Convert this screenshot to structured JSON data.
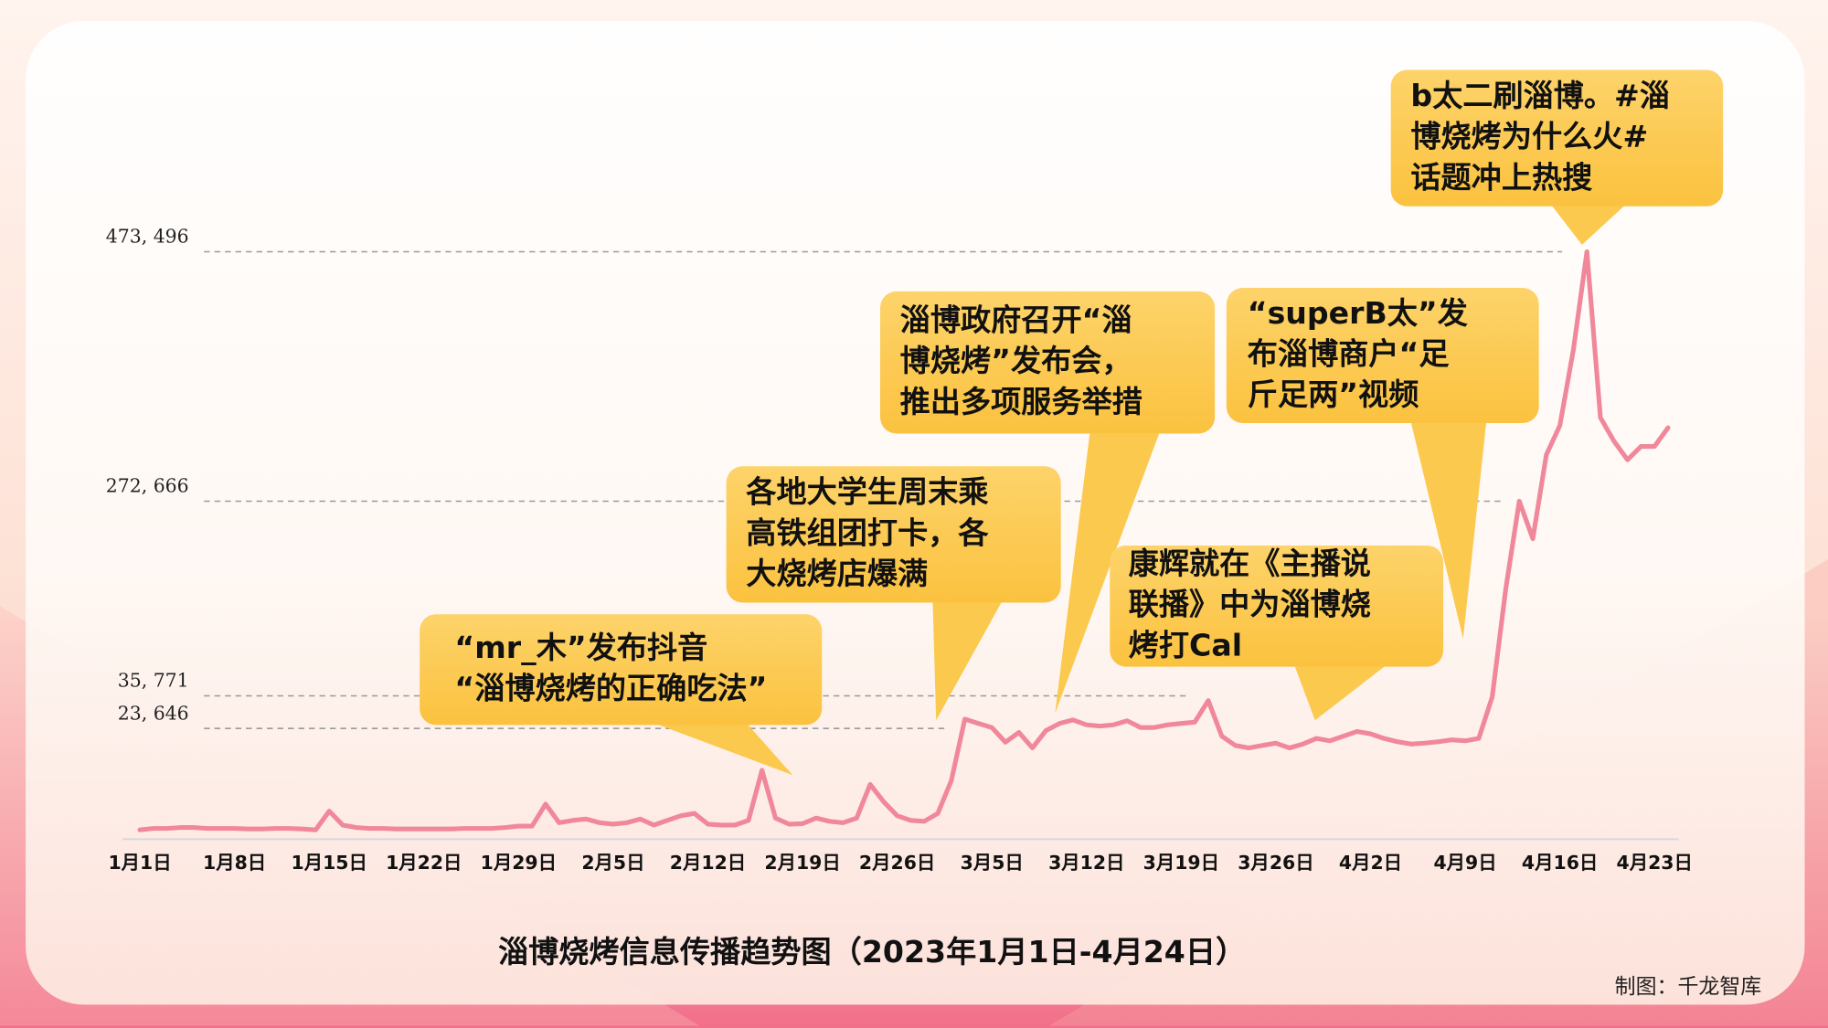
{
  "chart_data": {
    "type": "line",
    "title": "淄博烧烤信息传播趋势图（2023年1月1日-4月24日）",
    "credit": "制图：千龙智库",
    "categories": [
      "1月1日",
      null,
      null,
      null,
      null,
      null,
      null,
      "1月8日",
      null,
      null,
      null,
      null,
      null,
      null,
      "1月15日",
      null,
      null,
      null,
      null,
      null,
      null,
      "1月22日",
      null,
      null,
      null,
      null,
      null,
      null,
      "1月29日",
      null,
      null,
      null,
      null,
      null,
      null,
      "2月5日",
      null,
      null,
      null,
      null,
      null,
      null,
      "2月12日",
      null,
      null,
      null,
      null,
      null,
      null,
      "2月19日",
      null,
      null,
      null,
      null,
      null,
      null,
      "2月26日",
      null,
      null,
      null,
      null,
      null,
      null,
      "3月5日",
      null,
      null,
      null,
      null,
      null,
      null,
      "3月12日",
      null,
      null,
      null,
      null,
      null,
      null,
      "3月19日",
      null,
      null,
      null,
      null,
      null,
      null,
      "3月26日",
      null,
      null,
      null,
      null,
      null,
      null,
      "4月2日",
      null,
      null,
      null,
      null,
      null,
      null,
      "4月9日",
      null,
      null,
      null,
      null,
      null,
      null,
      "4月16日",
      null,
      null,
      null,
      null,
      null,
      null,
      "4月23日",
      null
    ],
    "values": [
      2000,
      2300,
      2300,
      2500,
      2500,
      2300,
      2300,
      2300,
      2200,
      2200,
      2300,
      2300,
      2200,
      2000,
      6000,
      3000,
      2500,
      2300,
      2300,
      2200,
      2200,
      2200,
      2200,
      2200,
      2300,
      2300,
      2300,
      2500,
      2800,
      2800,
      7500,
      3500,
      4000,
      4300,
      3500,
      3200,
      3500,
      4300,
      3000,
      4000,
      5000,
      5500,
      3200,
      3000,
      3000,
      4000,
      14700,
      4500,
      3200,
      3300,
      4500,
      3800,
      3500,
      4500,
      11700,
      8000,
      5000,
      4000,
      3800,
      5500,
      12500,
      27100,
      25500,
      24000,
      20700,
      22800,
      19500,
      23200,
      25500,
      26800,
      25000,
      24500,
      25000,
      26500,
      24000,
      24000,
      25000,
      25500,
      26000,
      34000,
      22000,
      20000,
      19500,
      20000,
      20500,
      19500,
      20300,
      21500,
      21000,
      22000,
      23000,
      22500,
      21500,
      20800,
      20300,
      20500,
      20800,
      21200,
      21000,
      21500,
      35400,
      166000,
      272666,
      227000,
      310000,
      333600,
      394600,
      473496,
      340000,
      321000,
      306000,
      316800,
      316800,
      331800
    ],
    "color": "#f0879a",
    "ylim": [
      0,
      473496
    ],
    "yticks": [
      {
        "value": 23646,
        "label": "23, 646"
      },
      {
        "value": 35771,
        "label": "35, 771"
      },
      {
        "value": 272666,
        "label": "272, 666"
      },
      {
        "value": 473496,
        "label": "473, 496"
      }
    ],
    "grid": true,
    "annotations": [
      {
        "lines": [
          "“mr_木”发布抖音",
          "“淄博烧烤的正确吃法”"
        ]
      },
      {
        "lines": [
          "各地大学生周末乘",
          "高铁组团打卡，各",
          "大烧烤店爆满"
        ]
      },
      {
        "lines": [
          "淄博政府召开“淄",
          "博烧烤”发布会，",
          "推出多项服务举措"
        ]
      },
      {
        "lines": [
          "“superB太”发",
          "布淄博商户“足",
          "斤足两”视频"
        ]
      },
      {
        "lines": [
          "康辉就在《主播说",
          "联播》中为淄博烧",
          "烤打Cal"
        ]
      },
      {
        "lines": [
          "b太二刷淄博。#淄",
          "博烧烤为什么火#",
          "话题冲上热搜"
        ]
      }
    ]
  }
}
